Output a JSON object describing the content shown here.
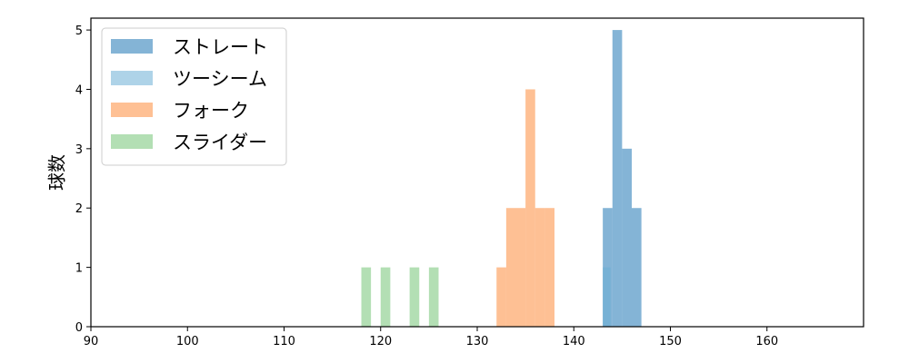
{
  "chart_data": {
    "type": "bar",
    "subtype": "histogram",
    "ylabel": "球数",
    "xlim": [
      90,
      170
    ],
    "ylim": [
      0,
      5.2
    ],
    "x_ticks": [
      90,
      100,
      110,
      120,
      130,
      140,
      150,
      160
    ],
    "y_ticks": [
      0,
      1,
      2,
      3,
      4,
      5
    ],
    "grid": false,
    "legend_position": "top-left",
    "series": [
      {
        "name": "ストレート",
        "color": "#1f77b4",
        "bins": [
          {
            "x0": 143.0,
            "x1": 144.0,
            "count": 2
          },
          {
            "x0": 144.0,
            "x1": 145.0,
            "count": 5
          },
          {
            "x0": 145.0,
            "x1": 146.0,
            "count": 3
          },
          {
            "x0": 146.0,
            "x1": 147.0,
            "count": 2
          }
        ]
      },
      {
        "name": "ツーシーム",
        "color": "#6baed6",
        "bins": [
          {
            "x0": 143.0,
            "x1": 143.8,
            "count": 1
          }
        ]
      },
      {
        "name": "フォーク",
        "color": "#fd8d3c",
        "bins": [
          {
            "x0": 132.0,
            "x1": 133.0,
            "count": 1
          },
          {
            "x0": 133.0,
            "x1": 134.0,
            "count": 2
          },
          {
            "x0": 134.0,
            "x1": 135.0,
            "count": 2
          },
          {
            "x0": 135.0,
            "x1": 136.0,
            "count": 4
          },
          {
            "x0": 136.0,
            "x1": 137.0,
            "count": 2
          },
          {
            "x0": 137.0,
            "x1": 138.0,
            "count": 2
          }
        ]
      },
      {
        "name": "スライダー",
        "color": "#74c476",
        "bins": [
          {
            "x0": 118.0,
            "x1": 119.0,
            "count": 1
          },
          {
            "x0": 120.0,
            "x1": 121.0,
            "count": 1
          },
          {
            "x0": 123.0,
            "x1": 124.0,
            "count": 1
          },
          {
            "x0": 125.0,
            "x1": 126.0,
            "count": 1
          }
        ]
      }
    ]
  }
}
